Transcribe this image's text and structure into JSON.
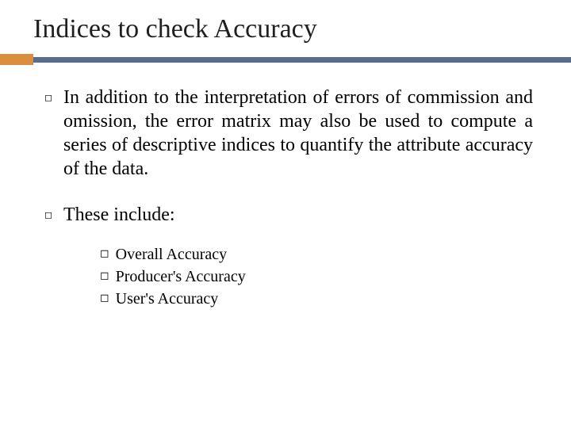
{
  "colors": {
    "accent_block": "#d98f40",
    "accent_line": "#5a6b8c",
    "title_color": "#1f1f1f",
    "text_color": "#000000",
    "background": "#ffffff"
  },
  "title": "Indices to check Accuracy",
  "paragraphs": [
    "In addition to the interpretation of errors of commission and omission, the error matrix may also be used to compute a series of descriptive indices to quantify the attribute accuracy of the data.",
    "These include:"
  ],
  "sublist": [
    "Overall Accuracy",
    "Producer's Accuracy",
    " User's Accuracy"
  ],
  "typography": {
    "title_fontsize": 34,
    "body_fontsize": 24,
    "sub_fontsize": 20,
    "font_family": "Georgia, serif"
  }
}
